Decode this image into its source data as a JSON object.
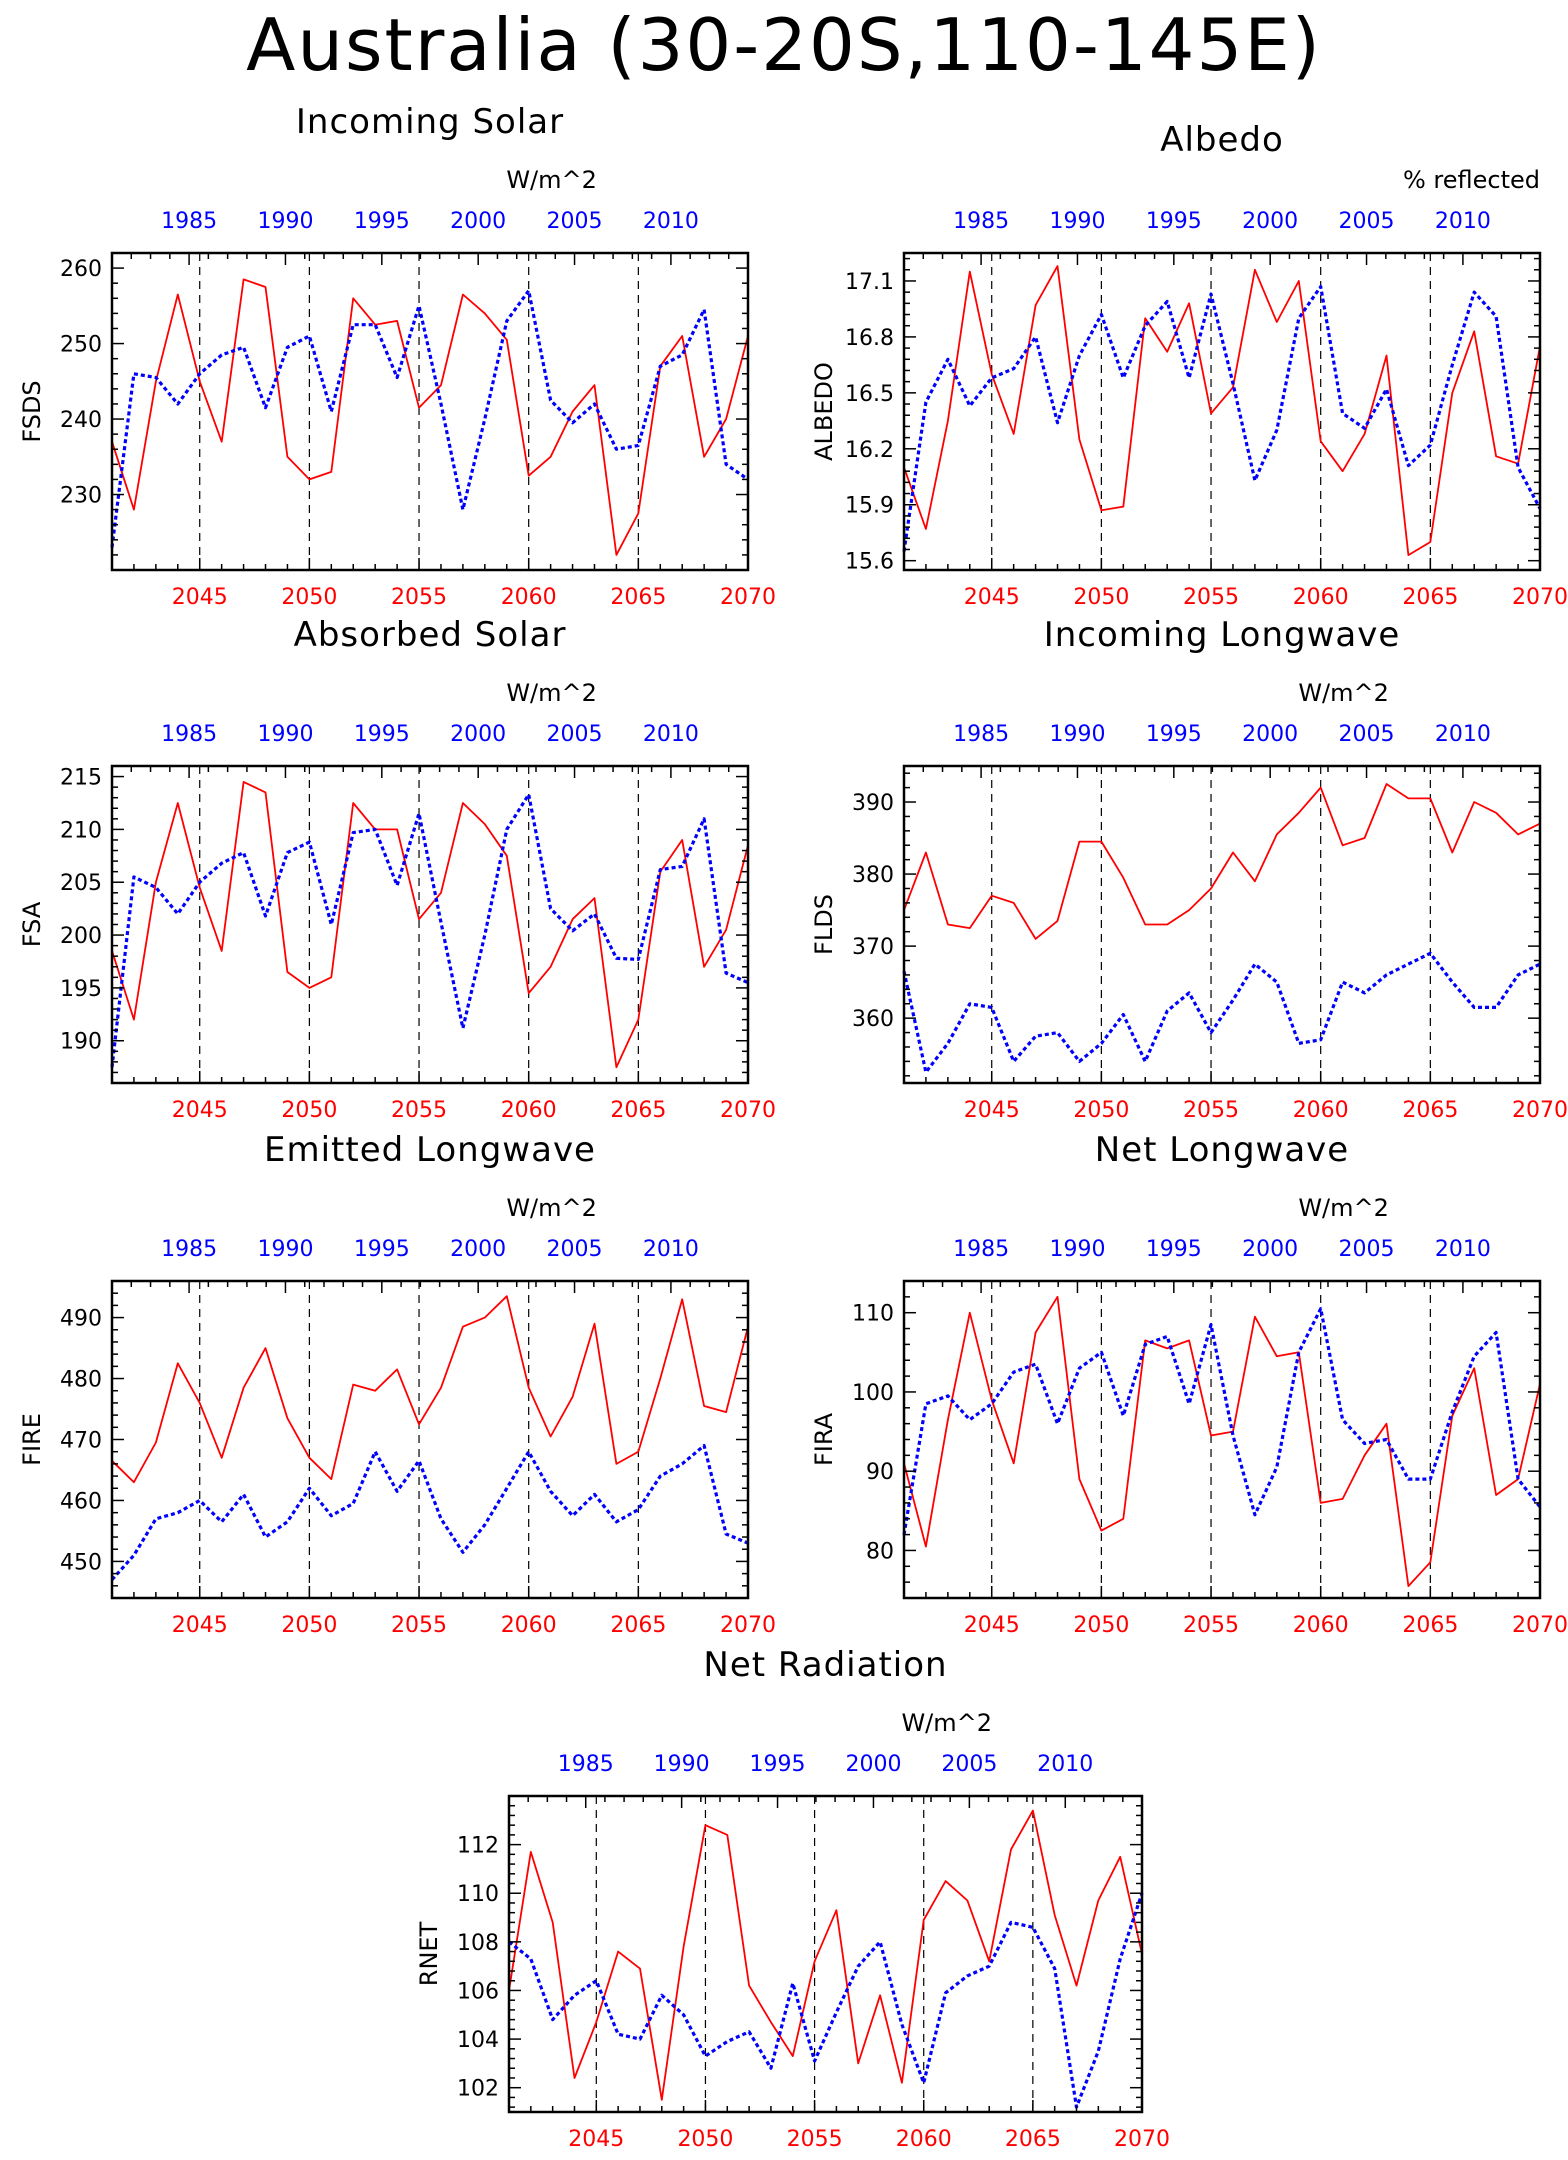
{
  "title": "Australia (30-20S,110-145E)",
  "colors": {
    "future": "#ff0000",
    "past": "#0000ff",
    "axis": "#000000"
  },
  "chart_data": [
    {
      "type": "line",
      "title": "Incoming Solar",
      "ylabel": "FSDS",
      "units": "W/m^2",
      "ylim": [
        220,
        262
      ],
      "yticks": [
        230,
        240,
        250,
        260
      ],
      "x_bottom": [
        2041,
        2042,
        2043,
        2044,
        2045,
        2046,
        2047,
        2048,
        2049,
        2050,
        2051,
        2052,
        2053,
        2054,
        2055,
        2056,
        2057,
        2058,
        2059,
        2060,
        2061,
        2062,
        2063,
        2064,
        2065,
        2066,
        2067,
        2068,
        2069,
        2070
      ],
      "x_top": [
        1981,
        1982,
        1983,
        1984,
        1985,
        1986,
        1987,
        1988,
        1989,
        1990,
        1991,
        1992,
        1993,
        1994,
        1995,
        1996,
        1997,
        1998,
        1999,
        2000,
        2001,
        2002,
        2003,
        2004,
        2005,
        2006,
        2007,
        2008,
        2009,
        2010,
        2011,
        2012,
        2013,
        2014
      ],
      "series": [
        {
          "values": [
            237,
            228,
            245,
            256.5,
            245,
            237,
            258.5,
            257.5,
            235,
            232,
            233,
            256,
            252.5,
            253,
            241.5,
            244.5,
            256.5,
            254,
            250.5,
            232.5,
            235,
            241,
            244.5,
            222,
            227.5,
            247,
            251,
            235,
            240,
            251
          ]
        },
        {
          "values": [
            223,
            246,
            245.5,
            242,
            246,
            248.5,
            249.5,
            241.5,
            249.5,
            251,
            241,
            252.5,
            252.5,
            245.5,
            255,
            242,
            228,
            240,
            253,
            257,
            242.5,
            239.5,
            242,
            236,
            236.5,
            247,
            248.5,
            254.5,
            234,
            232
          ]
        }
      ]
    },
    {
      "type": "line",
      "title": "Albedo",
      "ylabel": "ALBEDO",
      "units": "% reflected",
      "ylim": [
        15.55,
        17.25
      ],
      "yticks": [
        15.6,
        15.9,
        16.2,
        16.5,
        16.8,
        17.1
      ],
      "x_bottom": [
        2041,
        2042,
        2043,
        2044,
        2045,
        2046,
        2047,
        2048,
        2049,
        2050,
        2051,
        2052,
        2053,
        2054,
        2055,
        2056,
        2057,
        2058,
        2059,
        2060,
        2061,
        2062,
        2063,
        2064,
        2065,
        2066,
        2067,
        2068,
        2069,
        2070
      ],
      "x_top": [
        1981,
        1982,
        1983,
        1984,
        1985,
        1986,
        1987,
        1988,
        1989,
        1990,
        1991,
        1992,
        1993,
        1994,
        1995,
        1996,
        1997,
        1998,
        1999,
        2000,
        2001,
        2002,
        2003,
        2004,
        2005,
        2006,
        2007,
        2008,
        2009,
        2010,
        2011,
        2012,
        2013,
        2014
      ],
      "series": [
        {
          "values": [
            16.1,
            15.77,
            16.35,
            17.15,
            16.6,
            16.28,
            16.97,
            17.18,
            16.25,
            15.87,
            15.89,
            16.9,
            16.72,
            16.98,
            16.39,
            16.53,
            17.16,
            16.88,
            17.1,
            16.24,
            16.08,
            16.28,
            16.7,
            15.63,
            15.7,
            16.5,
            16.83,
            16.16,
            16.12,
            16.75
          ]
        },
        {
          "values": [
            15.65,
            16.45,
            16.68,
            16.43,
            16.58,
            16.63,
            16.8,
            16.34,
            16.7,
            16.92,
            16.58,
            16.86,
            16.99,
            16.58,
            17.03,
            16.55,
            16.03,
            16.3,
            16.9,
            17.07,
            16.39,
            16.31,
            16.52,
            16.11,
            16.22,
            16.65,
            17.04,
            16.91,
            16.1,
            15.88
          ]
        }
      ]
    },
    {
      "type": "line",
      "title": "Absorbed Solar",
      "ylabel": "FSA",
      "units": "W/m^2",
      "ylim": [
        186,
        216
      ],
      "yticks": [
        190,
        195,
        200,
        205,
        210,
        215
      ],
      "x_bottom": [
        2041,
        2042,
        2043,
        2044,
        2045,
        2046,
        2047,
        2048,
        2049,
        2050,
        2051,
        2052,
        2053,
        2054,
        2055,
        2056,
        2057,
        2058,
        2059,
        2060,
        2061,
        2062,
        2063,
        2064,
        2065,
        2066,
        2067,
        2068,
        2069,
        2070
      ],
      "x_top": [
        1981,
        1982,
        1983,
        1984,
        1985,
        1986,
        1987,
        1988,
        1989,
        1990,
        1991,
        1992,
        1993,
        1994,
        1995,
        1996,
        1997,
        1998,
        1999,
        2000,
        2001,
        2002,
        2003,
        2004,
        2005,
        2006,
        2007,
        2008,
        2009,
        2010,
        2011,
        2012,
        2013,
        2014
      ],
      "series": [
        {
          "values": [
            198.5,
            192,
            205,
            212.5,
            204.5,
            198.5,
            214.5,
            213.5,
            196.5,
            195,
            196,
            212.5,
            210,
            210,
            201.5,
            204,
            212.5,
            210.5,
            207.5,
            194.5,
            197,
            201.5,
            203.5,
            187.5,
            192,
            206,
            209,
            197,
            200.5,
            208.5
          ]
        },
        {
          "values": [
            187.5,
            205.5,
            204.5,
            202,
            205,
            206.8,
            207.8,
            201.8,
            207.8,
            208.8,
            201,
            209.7,
            210,
            204.7,
            211.5,
            201.2,
            191.2,
            200,
            210,
            213.3,
            202.5,
            200.4,
            202,
            197.8,
            197.7,
            206.2,
            206.5,
            211,
            196.4,
            195.5
          ]
        }
      ]
    },
    {
      "type": "line",
      "title": "Incoming Longwave",
      "ylabel": "FLDS",
      "units": "W/m^2",
      "ylim": [
        351,
        395
      ],
      "yticks": [
        360,
        370,
        380,
        390
      ],
      "x_bottom": [
        2041,
        2042,
        2043,
        2044,
        2045,
        2046,
        2047,
        2048,
        2049,
        2050,
        2051,
        2052,
        2053,
        2054,
        2055,
        2056,
        2057,
        2058,
        2059,
        2060,
        2061,
        2062,
        2063,
        2064,
        2065,
        2066,
        2067,
        2068,
        2069,
        2070
      ],
      "x_top": [
        1981,
        1982,
        1983,
        1984,
        1985,
        1986,
        1987,
        1988,
        1989,
        1990,
        1991,
        1992,
        1993,
        1994,
        1995,
        1996,
        1997,
        1998,
        1999,
        2000,
        2001,
        2002,
        2003,
        2004,
        2005,
        2006,
        2007,
        2008,
        2009,
        2010,
        2011,
        2012,
        2013,
        2014
      ],
      "series": [
        {
          "values": [
            375,
            383,
            373,
            372.5,
            377,
            376,
            371,
            373.5,
            384.5,
            384.5,
            379.5,
            373,
            373,
            375,
            378,
            383,
            379,
            385.5,
            388.5,
            392,
            384,
            385,
            392.5,
            390.5,
            390.5,
            383,
            390,
            388.5,
            385.5,
            387
          ]
        },
        {
          "values": [
            366.5,
            352.5,
            356.5,
            362,
            361.5,
            354,
            357.5,
            358,
            354,
            356.5,
            360.5,
            354,
            361,
            363.5,
            358,
            362.5,
            367.5,
            365,
            356.5,
            357,
            365,
            363.5,
            366,
            367.5,
            369,
            365,
            361.5,
            361.5,
            366,
            367.5
          ]
        }
      ]
    },
    {
      "type": "line",
      "title": "Emitted Longwave",
      "ylabel": "FIRE",
      "units": "W/m^2",
      "ylim": [
        444,
        496
      ],
      "yticks": [
        450,
        460,
        470,
        480,
        490
      ],
      "x_bottom": [
        2041,
        2042,
        2043,
        2044,
        2045,
        2046,
        2047,
        2048,
        2049,
        2050,
        2051,
        2052,
        2053,
        2054,
        2055,
        2056,
        2057,
        2058,
        2059,
        2060,
        2061,
        2062,
        2063,
        2064,
        2065,
        2066,
        2067,
        2068,
        2069,
        2070
      ],
      "x_top": [
        1981,
        1982,
        1983,
        1984,
        1985,
        1986,
        1987,
        1988,
        1989,
        1990,
        1991,
        1992,
        1993,
        1994,
        1995,
        1996,
        1997,
        1998,
        1999,
        2000,
        2001,
        2002,
        2003,
        2004,
        2005,
        2006,
        2007,
        2008,
        2009,
        2010,
        2011,
        2012,
        2013,
        2014
      ],
      "series": [
        {
          "values": [
            466.5,
            463,
            469.5,
            482.5,
            476,
            467,
            478.5,
            485,
            473.5,
            467,
            463.5,
            479,
            478,
            481.5,
            472.5,
            478.5,
            488.5,
            490,
            493.5,
            478.5,
            470.5,
            477,
            489,
            466,
            468,
            480,
            493,
            475.5,
            474.5,
            488.5
          ]
        },
        {
          "values": [
            447,
            451,
            457,
            458,
            460,
            456.5,
            461,
            454,
            456.5,
            462,
            457.5,
            459.5,
            468,
            461.5,
            466.5,
            457,
            451.5,
            456,
            462,
            468,
            461.5,
            457.5,
            461,
            456.5,
            458.5,
            464,
            466,
            469,
            454.5,
            453
          ]
        }
      ]
    },
    {
      "type": "line",
      "title": "Net Longwave",
      "ylabel": "FIRA",
      "units": "W/m^2",
      "ylim": [
        74,
        114
      ],
      "yticks": [
        80,
        90,
        100,
        110
      ],
      "x_bottom": [
        2041,
        2042,
        2043,
        2044,
        2045,
        2046,
        2047,
        2048,
        2049,
        2050,
        2051,
        2052,
        2053,
        2054,
        2055,
        2056,
        2057,
        2058,
        2059,
        2060,
        2061,
        2062,
        2063,
        2064,
        2065,
        2066,
        2067,
        2068,
        2069,
        2070
      ],
      "x_top": [
        1981,
        1982,
        1983,
        1984,
        1985,
        1986,
        1987,
        1988,
        1989,
        1990,
        1991,
        1992,
        1993,
        1994,
        1995,
        1996,
        1997,
        1998,
        1999,
        2000,
        2001,
        2002,
        2003,
        2004,
        2005,
        2006,
        2007,
        2008,
        2009,
        2010,
        2011,
        2012,
        2013,
        2014
      ],
      "series": [
        {
          "values": [
            91,
            80.5,
            96.5,
            110,
            99,
            91,
            107.5,
            112,
            89,
            82.5,
            84,
            106.5,
            105.5,
            106.5,
            94.5,
            95,
            109.5,
            104.5,
            105,
            86,
            86.5,
            92,
            96,
            75.5,
            78.5,
            97,
            103,
            87,
            89,
            101
          ]
        },
        {
          "values": [
            82,
            98.5,
            99.5,
            96.5,
            98.5,
            102.5,
            103.5,
            96,
            103,
            105,
            97,
            106,
            107,
            98.5,
            108.5,
            94.5,
            84.5,
            90.5,
            105,
            110.5,
            96.5,
            93.5,
            94,
            89,
            89,
            97.5,
            104.5,
            107.5,
            89,
            85.5
          ]
        }
      ]
    },
    {
      "type": "line",
      "title": "Net Radiation",
      "ylabel": "RNET",
      "units": "W/m^2",
      "ylim": [
        101,
        114
      ],
      "yticks": [
        102,
        104,
        106,
        108,
        110,
        112
      ],
      "x_bottom": [
        2041,
        2042,
        2043,
        2044,
        2045,
        2046,
        2047,
        2048,
        2049,
        2050,
        2051,
        2052,
        2053,
        2054,
        2055,
        2056,
        2057,
        2058,
        2059,
        2060,
        2061,
        2062,
        2063,
        2064,
        2065,
        2066,
        2067,
        2068,
        2069,
        2070
      ],
      "x_top": [
        1981,
        1982,
        1983,
        1984,
        1985,
        1986,
        1987,
        1988,
        1989,
        1990,
        1991,
        1992,
        1993,
        1994,
        1995,
        1996,
        1997,
        1998,
        1999,
        2000,
        2001,
        2002,
        2003,
        2004,
        2005,
        2006,
        2007,
        2008,
        2009,
        2010,
        2011,
        2012,
        2013,
        2014
      ],
      "series": [
        {
          "values": [
            106,
            111.7,
            108.8,
            102.4,
            104.7,
            107.6,
            106.9,
            101.5,
            107.8,
            112.8,
            112.4,
            106.2,
            104.7,
            103.3,
            107.2,
            109.3,
            103,
            105.8,
            102.2,
            108.9,
            110.5,
            109.7,
            107.2,
            111.8,
            113.4,
            109.1,
            106.2,
            109.7,
            111.5,
            107.5
          ]
        },
        {
          "values": [
            108,
            107.3,
            104.8,
            105.8,
            106.4,
            104.2,
            104,
            105.8,
            105,
            103.3,
            103.9,
            104.3,
            102.8,
            106.3,
            103.1,
            105.1,
            107,
            108,
            104.6,
            102.2,
            105.9,
            106.6,
            107,
            108.8,
            108.6,
            106.9,
            101.2,
            103.5,
            107.3,
            110
          ]
        }
      ]
    }
  ]
}
